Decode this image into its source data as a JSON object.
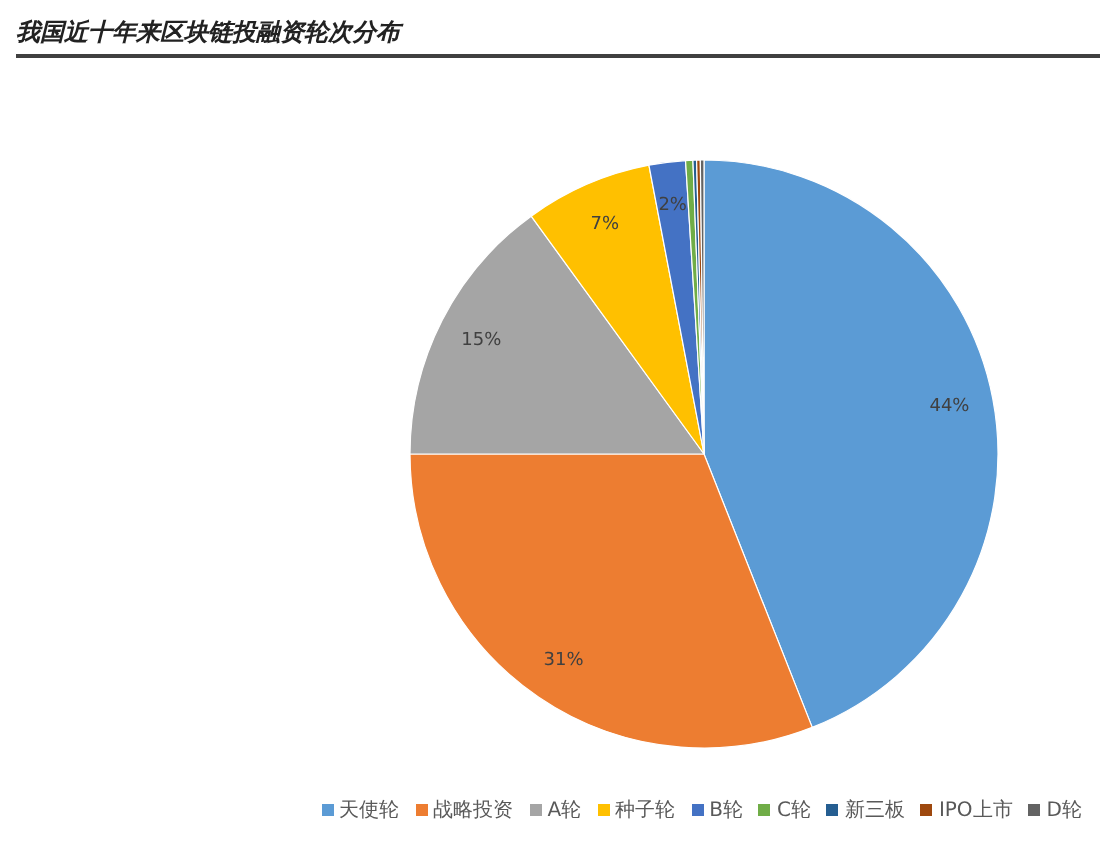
{
  "chart_data": {
    "type": "pie",
    "title": "我国近十年来区块链投融资轮次分布",
    "categories": [
      "天使轮",
      "战略投资",
      "A轮",
      "种子轮",
      "B轮",
      "C轮",
      "新三板",
      "IPO上市",
      "D轮"
    ],
    "values": [
      44,
      31,
      15,
      7,
      2,
      0.4,
      0.2,
      0.2,
      0.2
    ],
    "value_labels": [
      "44%",
      "31%",
      "15%",
      "7%",
      "2%",
      null,
      null,
      null,
      null
    ],
    "colors": [
      "#5b9bd5",
      "#ed7d31",
      "#a5a5a5",
      "#ffc000",
      "#4472c4",
      "#70ad47",
      "#255e91",
      "#9e480e",
      "#636363"
    ],
    "legend": "bottom"
  }
}
